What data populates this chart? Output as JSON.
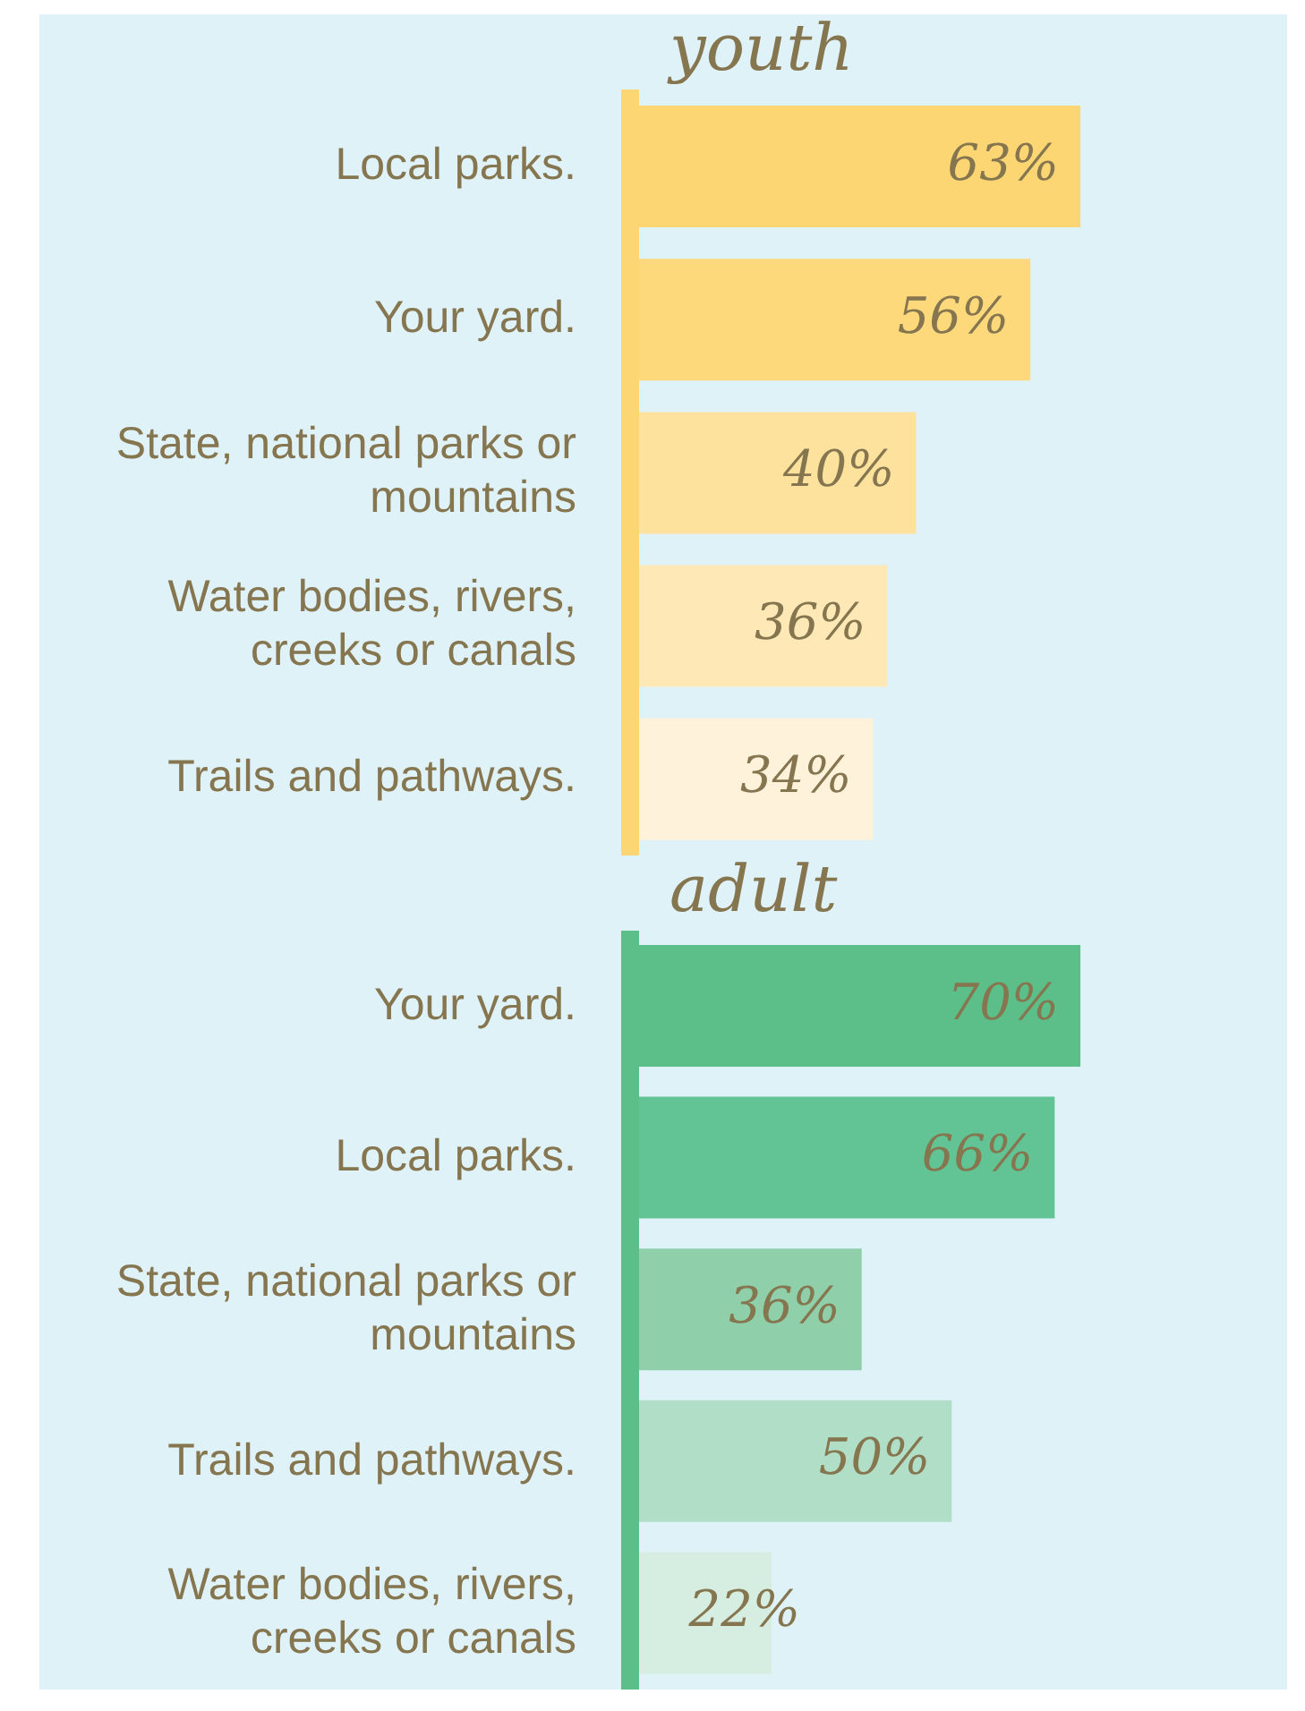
{
  "chart_data": [
    {
      "type": "bar",
      "orientation": "horizontal",
      "title": "youth",
      "categories": [
        "Local parks.",
        "Your yard.",
        "State, national parks or mountains",
        "Water bodies, rivers, creeks or canals",
        "Trails and pathways."
      ],
      "values": [
        63,
        56,
        40,
        36,
        34
      ],
      "colors": [
        "#fdd674",
        "#fed97c",
        "#fde29e",
        "#fee8b6",
        "#fef2da"
      ],
      "data_labels": true,
      "value_labels": [
        "63%",
        "56%",
        "40%",
        "36%",
        "34%"
      ]
    },
    {
      "type": "bar",
      "orientation": "horizontal",
      "title": "adult",
      "categories": [
        "Your yard.",
        "Local parks.",
        "State, national parks or mountains",
        "Trails and pathways.",
        "Water bodies, rivers, creeks or canals"
      ],
      "values": [
        70,
        66,
        36,
        50,
        22
      ],
      "colors": [
        "#5cbf8a",
        "#62c495",
        "#8fd0ab",
        "#b0dec6",
        "#d6ede2"
      ],
      "data_labels": true,
      "value_labels": [
        "70%",
        "66%",
        "36%",
        "50%",
        "22%"
      ]
    }
  ]
}
